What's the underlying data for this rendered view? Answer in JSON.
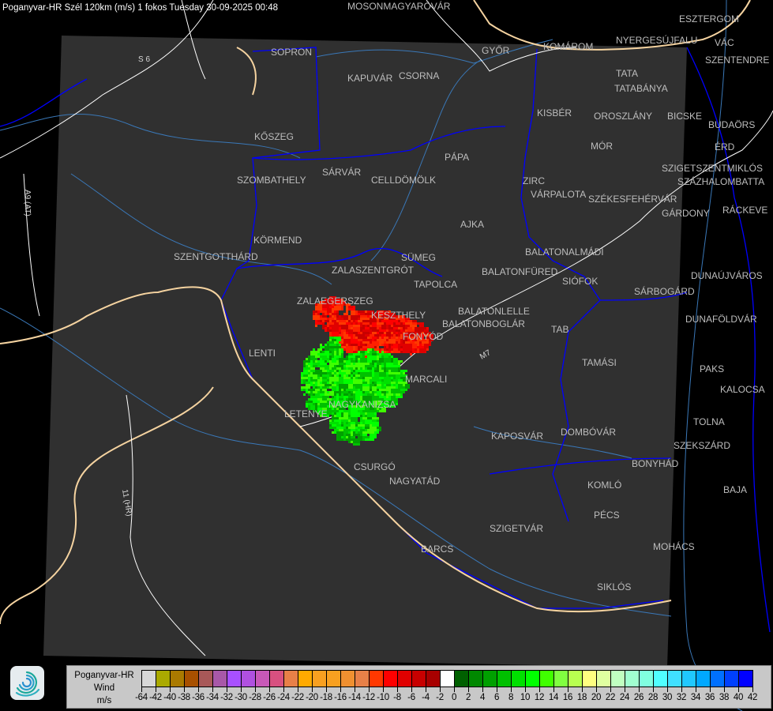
{
  "header": {
    "title": "Poganyvar-HR Szél 120km (m/s) 1 fokos Tuesday 30-09-2025 00:48"
  },
  "map": {
    "background_color": "#000000",
    "radar_area_color": "#303030",
    "border_color": "#0000ff",
    "country_border_color": "#f5d3a0",
    "river_color": "#3a78b8",
    "road_color": "#ffffff",
    "city_label_color": "#bdbdbd",
    "cities": [
      "MOSONMAGYARÓVÁR",
      "SOPRON",
      "KAPUVÁR",
      "CSORNA",
      "GYŐR",
      "KOMÁROM",
      "NYERGESÚJFALU",
      "ESZTERGOM",
      "VÁC",
      "SZENTENDRE",
      "TATA",
      "TATABÁNYA",
      "KISBÉR",
      "OROSZLÁNY",
      "BICSKE",
      "BUDAÖRS",
      "ÉRD",
      "SZIGETSZENTMIKLÓS",
      "SZÁZHALOMBATTA",
      "KŐSZEG",
      "MÓR",
      "PÁPA",
      "SZOMBATHELY",
      "SÁRVÁR",
      "CELLDÖMÖLK",
      "ZIRC",
      "VÁRPALOTA",
      "SZÉKESFEHÉRVÁR",
      "GÁRDONY",
      "RÁCKEVE",
      "AJKA",
      "KÖRMEND",
      "SZENTGOTTHÁRD",
      "SÜMEG",
      "ZALASZENTGRÓT",
      "BALATONALMÁDI",
      "BALATONFÜRED",
      "SIÓFOK",
      "TAPOLCA",
      "DUNAÚJVÁROS",
      "SÁRBOGÁRD",
      "ZALAEGERSZEG",
      "KESZTHELY",
      "BALATONLELLE",
      "BALATONBOGLÁR",
      "FONYÓD",
      "DUNAFÖLDVÁR",
      "TAB",
      "LENTI",
      "TAMÁSI",
      "PAKS",
      "MARCALI",
      "KALOCSA",
      "NAGYKANIZSA",
      "LETENYE",
      "TOLNA",
      "KAPOSVÁR",
      "DOMBÓVÁR",
      "SZEKSZÁRD",
      "BONYHÁD",
      "CSURGÓ",
      "NAGYATÁD",
      "KOMLÓ",
      "BAJA",
      "PÉCS",
      "SZIGETVÁR",
      "MOHÁCS",
      "BARCS",
      "SIKLÓS"
    ],
    "roads": [
      "S 6",
      "A9 (AT)",
      "11 (HR)",
      "M7"
    ]
  },
  "legend": {
    "line1": "Poganyvar-HR",
    "line2": "Wind",
    "line3": "m/s",
    "colors": [
      "#d8d8d8",
      "#aaaa00",
      "#aa7a00",
      "#a85000",
      "#a85858",
      "#a858a8",
      "#a850ff",
      "#b050e0",
      "#c858b8",
      "#d85080",
      "#e88048",
      "#ffaa00",
      "#f8a020",
      "#f8a020",
      "#f09030",
      "#e88048",
      "#ff3800",
      "#ff0000",
      "#e00000",
      "#c80000",
      "#a80000",
      "#ffffff",
      "#006000",
      "#008800",
      "#00a000",
      "#00c000",
      "#00e000",
      "#00ff00",
      "#40ff00",
      "#80ff40",
      "#b8ff50",
      "#ffff80",
      "#e0ffa0",
      "#c0ffc0",
      "#a0ffd0",
      "#80ffe0",
      "#50ffff",
      "#40e0ff",
      "#20c8ff",
      "#00a8ff",
      "#0070ff",
      "#0040ff",
      "#0000ff"
    ],
    "labels": [
      "-64",
      "-42",
      "-40",
      "-38",
      "-36",
      "-34",
      "-32",
      "-30",
      "-28",
      "-26",
      "-24",
      "-22",
      "-20",
      "-18",
      "-16",
      "-14",
      "-12",
      "-10",
      "-8",
      "-6",
      "-4",
      "-2",
      "0",
      "2",
      "4",
      "6",
      "8",
      "10",
      "12",
      "14",
      "16",
      "18",
      "20",
      "22",
      "24",
      "26",
      "28",
      "30",
      "32",
      "34",
      "36",
      "38",
      "40",
      "42"
    ]
  }
}
